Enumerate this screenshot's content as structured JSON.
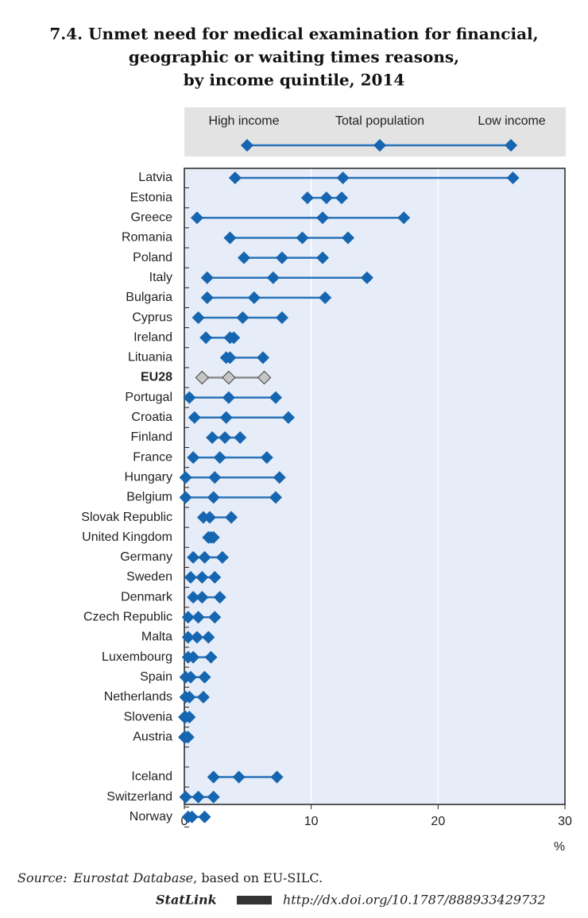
{
  "chart_data": {
    "type": "dot",
    "title": [
      "7.4.  Unmet need for medical examination for financial,",
      "geographic or waiting times reasons,",
      "by income quintile, 2014"
    ],
    "categories": [
      "Latvia",
      "Estonia",
      "Greece",
      "Romania",
      "Poland",
      "Italy",
      "Bulgaria",
      "Cyprus",
      "Ireland",
      "Lituania",
      "EU28",
      "Portugal",
      "Croatia",
      "Finland",
      "France",
      "Hungary",
      "Belgium",
      "Slovak Republic",
      "United Kingdom",
      "Germany",
      "Sweden",
      "Denmark",
      "Czech Republic",
      "Malta",
      "Luxembourg",
      "Spain",
      "Netherlands",
      "Slovenia",
      "Austria",
      null,
      "Iceland",
      "Switzerland",
      "Norway"
    ],
    "series": [
      {
        "name": "High income",
        "color": "#1565b0",
        "values": [
          4.0,
          9.7,
          1.0,
          3.6,
          4.7,
          1.8,
          1.8,
          1.1,
          1.7,
          3.3,
          1.4,
          0.4,
          0.8,
          2.2,
          0.7,
          0.1,
          0.1,
          1.5,
          1.9,
          0.7,
          0.5,
          0.7,
          0.3,
          0.3,
          0.3,
          0.1,
          0.1,
          0,
          0,
          null,
          2.3,
          0.1,
          0.3
        ]
      },
      {
        "name": "Total population",
        "color": "#1565b0",
        "values": [
          12.5,
          11.2,
          10.9,
          9.3,
          7.7,
          7.0,
          5.5,
          4.6,
          3.6,
          3.6,
          3.5,
          3.5,
          3.3,
          3.2,
          2.8,
          2.4,
          2.3,
          2.0,
          2.1,
          1.6,
          1.4,
          1.4,
          1.1,
          1.0,
          0.7,
          0.5,
          0.4,
          0.1,
          0.1,
          null,
          4.3,
          1.1,
          0.6
        ]
      },
      {
        "name": "Low income",
        "color": "#1565b0",
        "values": [
          25.9,
          12.4,
          17.3,
          12.9,
          10.9,
          14.4,
          11.1,
          7.7,
          3.9,
          6.2,
          6.3,
          7.2,
          8.2,
          4.4,
          6.5,
          7.5,
          7.2,
          3.7,
          2.3,
          3.0,
          2.4,
          2.8,
          2.4,
          1.9,
          2.1,
          1.6,
          1.5,
          0.4,
          0.3,
          null,
          7.3,
          2.3,
          1.6
        ]
      }
    ],
    "line_color": "#2a73b8",
    "highlight_category": "EU28",
    "highlight_color": "#c6c6c6",
    "highlight_line_color": "#8a8a8a",
    "xlim": [
      0,
      30
    ],
    "xticks": [
      0,
      10,
      20,
      30
    ],
    "xlabel": "%",
    "grid": true
  },
  "notes": {
    "source_label": "Source:",
    "source_name": "Eurostat Database",
    "source_rest": ", based on EU-SILC.",
    "statlink_label": "StatLink",
    "statlink_url": "http://dx.doi.org/10.1787/888933429732"
  }
}
